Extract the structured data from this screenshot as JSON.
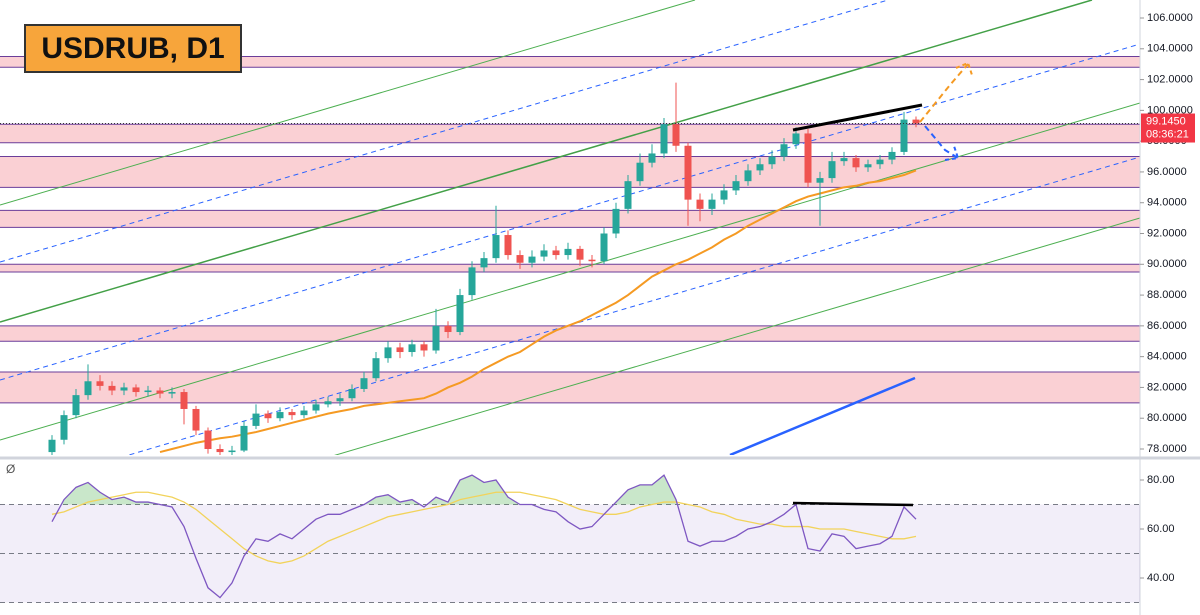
{
  "chart_data": [
    {
      "type": "candlestick",
      "title": "USDRUB, D1",
      "ylim": [
        77.61,
        107.17
      ],
      "yticks": [
        {
          "value": 78,
          "label": "78.0000"
        },
        {
          "value": 80,
          "label": "80.0000"
        },
        {
          "value": 82,
          "label": "82.0000"
        },
        {
          "value": 84,
          "label": "84.0000"
        },
        {
          "value": 86,
          "label": "86.0000"
        },
        {
          "value": 88,
          "label": "88.0000"
        },
        {
          "value": 90,
          "label": "90.0000"
        },
        {
          "value": 92,
          "label": "92.0000"
        },
        {
          "value": 94,
          "label": "94.0000"
        },
        {
          "value": 96,
          "label": "96.0000"
        },
        {
          "value": 98,
          "label": "98.0000"
        },
        {
          "value": 100,
          "label": "100.0000"
        },
        {
          "value": 102,
          "label": "102.0000"
        },
        {
          "value": 104,
          "label": "104.0000"
        },
        {
          "value": 106,
          "label": "106.0000"
        }
      ],
      "up_color": "#26a69a",
      "down_color": "#ef5350",
      "open": [
        77.8,
        78.6,
        80.2,
        81.5,
        82.4,
        82.1,
        81.8,
        82.0,
        81.7,
        81.8,
        81.6,
        81.7,
        80.6,
        79.2,
        78.0,
        77.8,
        77.9,
        79.5,
        80.3,
        80.0,
        80.4,
        80.2,
        80.5,
        80.9,
        81.1,
        81.3,
        81.9,
        82.6,
        83.9,
        84.6,
        84.3,
        84.8,
        84.4,
        86.0,
        85.6,
        88.0,
        89.8,
        90.4,
        91.9,
        90.6,
        90.1,
        90.5,
        90.9,
        90.6,
        91.0,
        90.3,
        90.2,
        92.0,
        93.6,
        95.4,
        96.6,
        97.2,
        99.1,
        97.7,
        94.2,
        93.6,
        94.2,
        94.8,
        95.4,
        96.1,
        96.5,
        97.0,
        97.8,
        98.5,
        95.3,
        95.6,
        96.7,
        96.9,
        96.3,
        96.5,
        96.8,
        97.3,
        99.4
      ],
      "high": [
        78.9,
        80.5,
        81.9,
        83.5,
        82.8,
        82.4,
        82.3,
        82.2,
        82.1,
        82.0,
        82.0,
        81.9,
        80.8,
        79.4,
        78.3,
        78.2,
        79.8,
        80.9,
        80.5,
        80.7,
        80.6,
        80.8,
        81.2,
        81.4,
        81.6,
        82.2,
        83.0,
        84.3,
        85.0,
        84.9,
        85.1,
        85.0,
        87.1,
        86.3,
        88.4,
        90.2,
        90.8,
        93.8,
        92.2,
        90.9,
        90.9,
        91.3,
        91.2,
        91.4,
        91.2,
        90.6,
        92.4,
        94.0,
        95.8,
        97.2,
        97.8,
        99.5,
        101.8,
        97.9,
        94.6,
        94.6,
        95.2,
        95.8,
        96.5,
        96.9,
        97.4,
        98.2,
        98.9,
        98.8,
        96.0,
        97.3,
        97.3,
        97.1,
        96.8,
        97.1,
        97.6,
        99.9,
        99.6
      ],
      "low": [
        77.5,
        78.3,
        80.0,
        81.2,
        81.8,
        81.5,
        81.5,
        81.4,
        81.4,
        81.3,
        81.3,
        79.6,
        78.9,
        77.7,
        77.5,
        77.6,
        77.8,
        79.3,
        79.7,
        79.8,
        79.9,
        80.0,
        80.3,
        80.7,
        80.8,
        81.1,
        81.7,
        82.4,
        83.6,
        83.9,
        84.0,
        84.0,
        84.2,
        85.2,
        85.4,
        87.7,
        89.5,
        90.1,
        90.3,
        89.7,
        89.8,
        90.2,
        90.3,
        90.3,
        89.9,
        89.8,
        90.0,
        91.7,
        93.3,
        95.1,
        96.3,
        96.9,
        97.3,
        92.5,
        92.8,
        93.2,
        93.9,
        94.5,
        95.1,
        95.8,
        96.2,
        96.7,
        97.5,
        95.0,
        92.5,
        95.3,
        96.4,
        96.0,
        96.0,
        96.2,
        96.5,
        97.1,
        98.9
      ],
      "close": [
        78.6,
        80.2,
        81.5,
        82.4,
        82.1,
        81.8,
        82.0,
        81.7,
        81.8,
        81.6,
        81.7,
        80.6,
        79.2,
        78.0,
        77.8,
        77.9,
        79.5,
        80.3,
        80.0,
        80.4,
        80.2,
        80.5,
        80.9,
        81.1,
        81.3,
        81.9,
        82.6,
        83.9,
        84.6,
        84.3,
        84.8,
        84.4,
        86.0,
        85.6,
        88.0,
        89.8,
        90.4,
        91.9,
        90.6,
        90.1,
        90.5,
        90.9,
        90.6,
        91.0,
        90.3,
        90.2,
        92.0,
        93.6,
        95.4,
        96.6,
        97.2,
        99.1,
        97.7,
        94.2,
        93.6,
        94.2,
        94.8,
        95.4,
        96.1,
        96.5,
        97.0,
        97.8,
        98.5,
        95.3,
        95.6,
        96.7,
        96.9,
        96.3,
        96.5,
        96.8,
        97.3,
        99.4,
        99.145
      ],
      "ma": {
        "color": "#f59a23",
        "values": [
          null,
          null,
          null,
          null,
          null,
          null,
          null,
          null,
          null,
          77.8,
          78.0,
          78.2,
          78.4,
          78.55,
          78.7,
          78.8,
          78.95,
          79.1,
          79.3,
          79.5,
          79.7,
          79.9,
          80.1,
          80.3,
          80.45,
          80.6,
          80.8,
          80.9,
          81.0,
          81.1,
          81.2,
          81.3,
          81.6,
          82.0,
          82.3,
          82.7,
          83.2,
          83.6,
          84.0,
          84.3,
          84.8,
          85.3,
          85.7,
          86.0,
          86.3,
          86.7,
          87.1,
          87.5,
          88.0,
          88.6,
          89.2,
          89.6,
          90.0,
          90.3,
          90.7,
          91.1,
          91.6,
          92.0,
          92.5,
          92.9,
          93.3,
          93.7,
          94.1,
          94.4,
          94.6,
          94.8,
          95.0,
          95.1,
          95.3,
          95.4,
          95.6,
          95.8,
          96.1
        ]
      },
      "zones": [
        [
          102.8,
          103.5
        ],
        [
          97.9,
          99.1
        ],
        [
          95.0,
          97.0
        ],
        [
          92.4,
          93.5
        ],
        [
          89.5,
          90.0
        ],
        [
          85.0,
          86.0
        ],
        [
          81.0,
          83.0
        ]
      ],
      "zone_color": "#f8bcc2",
      "zone_border": "#6a3d9a",
      "last_price": {
        "value": 99.145,
        "label": "99.1450"
      },
      "countdown": "08:36:21",
      "last_color": "#f23645"
    },
    {
      "type": "line",
      "label": "Ø",
      "ylim": [
        24.9,
        87.35
      ],
      "yticks": [
        {
          "value": 80,
          "label": "80.00"
        },
        {
          "value": 60,
          "label": "60.00"
        },
        {
          "value": 40,
          "label": "40.00"
        }
      ],
      "band": [
        30,
        70
      ],
      "levels": [
        70,
        50,
        30
      ],
      "series": [
        {
          "color": "#7e57c2",
          "values": [
            63,
            72,
            77,
            79,
            75,
            72,
            73,
            71,
            71,
            70,
            69,
            61,
            48,
            36,
            32,
            38,
            49,
            56,
            55,
            58,
            56,
            60,
            64,
            66,
            66,
            68,
            70,
            73,
            74,
            71,
            72,
            69,
            73,
            71,
            80,
            82,
            79,
            80,
            73,
            70,
            70,
            68,
            67,
            63,
            60,
            61,
            66,
            71,
            76,
            78,
            78,
            82,
            72,
            55,
            53,
            55,
            55,
            57,
            60,
            61,
            63,
            66,
            70,
            52,
            51,
            58,
            57,
            52,
            53,
            54,
            57,
            69,
            64
          ]
        },
        {
          "color": "#f2d35b",
          "values": [
            66,
            67,
            69,
            71,
            72,
            73,
            74,
            75,
            75,
            74,
            73,
            71,
            68,
            64,
            60,
            56,
            52,
            49,
            47,
            46,
            47,
            49,
            52,
            55,
            57,
            59,
            61,
            63,
            65,
            66,
            67,
            68,
            69,
            70,
            72,
            73,
            74,
            75,
            75,
            75,
            74,
            73,
            72,
            70,
            68,
            67,
            66,
            66,
            67,
            69,
            70,
            71,
            71,
            70,
            69,
            67,
            66,
            64,
            63,
            62,
            62,
            61,
            61,
            61,
            60,
            60,
            60,
            59,
            58,
            57,
            56,
            56,
            57
          ]
        }
      ]
    }
  ]
}
